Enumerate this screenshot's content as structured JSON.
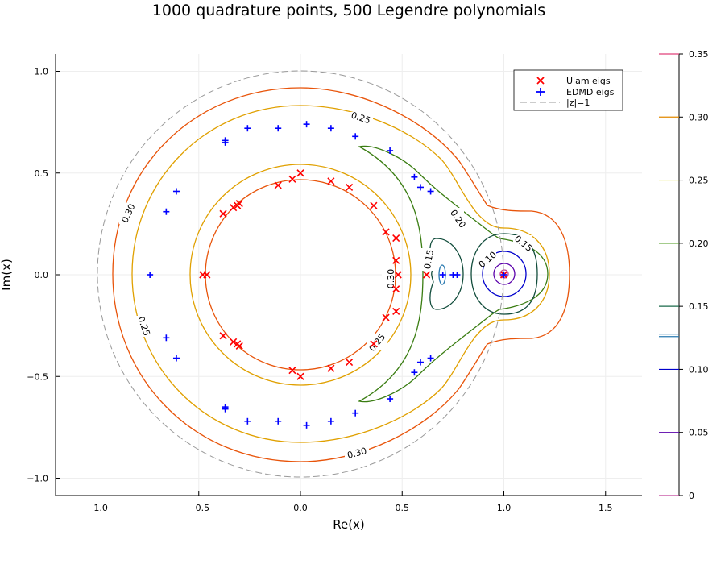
{
  "chart_data": {
    "type": "contour",
    "title": "1000 quadrature points, 500 Legendre polynomials",
    "xlabel": "Re(x)",
    "ylabel": "Im(x)",
    "xlim": [
      -1.2,
      1.68
    ],
    "ylim": [
      -1.09,
      1.09
    ],
    "xticks": [
      -1.0,
      -0.5,
      0.0,
      0.5,
      1.0,
      1.5
    ],
    "xtick_labels": [
      "−1.0",
      "−0.5",
      "0.0",
      "0.5",
      "1.0",
      "1.5"
    ],
    "yticks": [
      1.0,
      0.5,
      0.0,
      -0.5,
      -1.0
    ],
    "ytick_labels": [
      "1.0",
      "0.5",
      "0.0",
      "−0.5",
      "−1.0"
    ],
    "grid": true,
    "legend": {
      "placement": "top-right",
      "entries": [
        {
          "label": "Ulam eigs",
          "marker": "x",
          "color": "#ff0000"
        },
        {
          "label": "EDMD eigs",
          "marker": "+",
          "color": "#0000ff"
        },
        {
          "label": "|z|=1",
          "marker": "dashed-line",
          "color": "#999999"
        }
      ]
    },
    "colorbar": {
      "levels": [
        0.35,
        0.3,
        0.25,
        0.2,
        0.15,
        0.1,
        0.05,
        0
      ],
      "labels": [
        "0.35",
        "0.30",
        "0.25",
        "0.20",
        "0.15",
        "0.10",
        "0.05",
        "0"
      ],
      "colors": [
        "#e0407a",
        "#e38a00",
        "#d8d800",
        "#4a9a1a",
        "#1a6a4a",
        "#0000cc",
        "#5a00aa",
        "#c0409a"
      ]
    },
    "contour_labels": [
      "0.25",
      "0.30",
      "0.25",
      "0.20",
      "0.15",
      "0.10",
      "0.15",
      "0.30",
      "0.25",
      "0.30"
    ],
    "ulam_eigs": [
      [
        0.0,
        0.5
      ],
      [
        -0.04,
        0.47
      ],
      [
        -0.11,
        0.44
      ],
      [
        0.15,
        0.46
      ],
      [
        0.24,
        0.43
      ],
      [
        0.36,
        0.34
      ],
      [
        -0.3,
        0.35
      ],
      [
        -0.31,
        0.34
      ],
      [
        -0.33,
        0.33
      ],
      [
        -0.38,
        0.3
      ],
      [
        0.42,
        0.21
      ],
      [
        0.47,
        0.18
      ],
      [
        0.47,
        0.07
      ],
      [
        -0.48,
        0.0
      ],
      [
        -0.46,
        0.0
      ],
      [
        0.48,
        0.0
      ],
      [
        0.62,
        0.0
      ],
      [
        0.47,
        -0.07
      ],
      [
        0.47,
        -0.18
      ],
      [
        0.42,
        -0.21
      ],
      [
        -0.38,
        -0.3
      ],
      [
        -0.33,
        -0.33
      ],
      [
        -0.31,
        -0.34
      ],
      [
        -0.3,
        -0.35
      ],
      [
        0.36,
        -0.34
      ],
      [
        0.24,
        -0.43
      ],
      [
        0.15,
        -0.46
      ],
      [
        -0.04,
        -0.47
      ],
      [
        0.0,
        -0.5
      ],
      [
        1.0,
        0.0
      ]
    ],
    "edmd_eigs": [
      [
        0.03,
        0.74
      ],
      [
        -0.11,
        0.72
      ],
      [
        -0.26,
        0.72
      ],
      [
        0.15,
        0.72
      ],
      [
        0.27,
        0.68
      ],
      [
        -0.37,
        0.66
      ],
      [
        -0.37,
        0.65
      ],
      [
        0.44,
        0.61
      ],
      [
        -0.61,
        0.41
      ],
      [
        -0.66,
        0.31
      ],
      [
        0.56,
        0.48
      ],
      [
        0.59,
        0.43
      ],
      [
        0.64,
        0.41
      ],
      [
        -0.74,
        0.0
      ],
      [
        0.7,
        0.0
      ],
      [
        0.75,
        0.0
      ],
      [
        0.77,
        0.0
      ],
      [
        -0.61,
        -0.41
      ],
      [
        -0.66,
        -0.31
      ],
      [
        0.56,
        -0.48
      ],
      [
        0.59,
        -0.43
      ],
      [
        0.64,
        -0.41
      ],
      [
        0.44,
        -0.61
      ],
      [
        0.27,
        -0.68
      ],
      [
        0.15,
        -0.72
      ],
      [
        0.03,
        -0.74
      ],
      [
        -0.11,
        -0.72
      ],
      [
        -0.26,
        -0.72
      ],
      [
        -0.37,
        -0.65
      ],
      [
        -0.37,
        -0.66
      ],
      [
        1.0,
        0.0
      ]
    ]
  }
}
